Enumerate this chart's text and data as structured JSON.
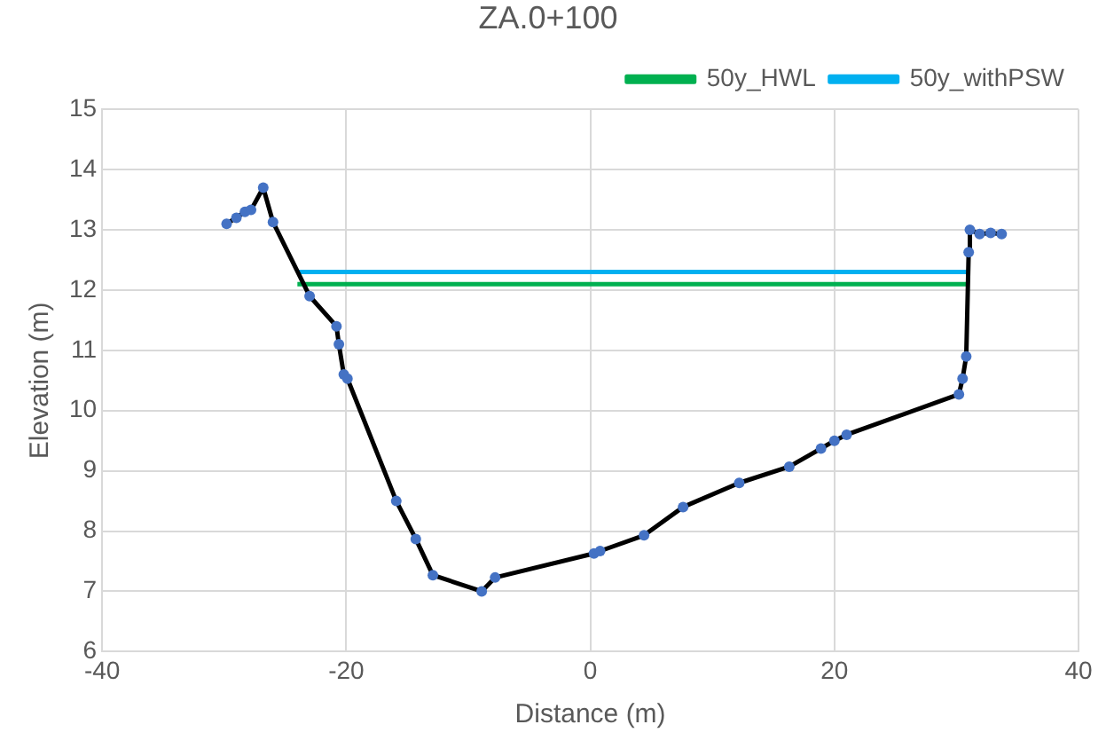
{
  "chart_data": {
    "type": "line",
    "title": "ZA.0+100",
    "xlabel": "Distance (m)",
    "ylabel": "Elevation (m)",
    "xlim": [
      -40,
      40
    ],
    "xticks": [
      -40,
      -20,
      0,
      20,
      40
    ],
    "ylim": [
      6,
      15
    ],
    "yticks": [
      6,
      7,
      8,
      9,
      10,
      11,
      12,
      13,
      14,
      15
    ],
    "grid": true,
    "legend": "top right",
    "line_style": "solid",
    "series": [
      {
        "marker": "circle",
        "color": "#000000",
        "colors": [
          "#4472c4",
          "#4472c4",
          "#4472c4",
          "#4472c4",
          "#4472c4",
          "#4472c4",
          "#4472c4",
          "#4472c4",
          "#4472c4",
          "#4472c4",
          "#4472c4",
          "#4472c4",
          "#4472c4",
          "#4472c4",
          "#4472c4",
          "#4472c4",
          "#4472c4",
          "#4472c4",
          "#4472c4",
          "#4472c4",
          "#4472c4",
          "#4472c4",
          "#4472c4",
          "#4472c4",
          "#4472c4",
          "#4472c4",
          "#4472c4",
          "#4472c4",
          "#4472c4",
          "#4472c4",
          "#4472c4",
          "#4472c4",
          "#4472c4"
        ],
        "x": [
          -29.8,
          -29.0,
          -28.3,
          -27.8,
          -26.8,
          -26.0,
          -23.0,
          -20.8,
          -20.6,
          -20.2,
          -19.9,
          -15.9,
          -14.3,
          -12.9,
          -8.9,
          -7.8,
          0.3,
          0.8,
          4.4,
          7.6,
          12.2,
          16.3,
          18.9,
          20.0,
          21.0,
          30.2,
          30.5,
          30.8,
          31.0,
          31.1,
          31.9,
          32.8,
          33.7
        ],
        "values": [
          13.1,
          13.2,
          13.3,
          13.33,
          13.7,
          13.13,
          11.9,
          11.4,
          11.1,
          10.6,
          10.53,
          8.5,
          7.87,
          7.27,
          7.0,
          7.23,
          7.63,
          7.67,
          7.93,
          8.4,
          8.8,
          9.07,
          9.37,
          9.5,
          9.6,
          10.27,
          10.53,
          10.9,
          12.63,
          13.0,
          12.93,
          12.95,
          12.93
        ]
      },
      {
        "marker": "none",
        "name": "50y_HWL",
        "color": "#00b050",
        "x": [
          -24,
          31
        ],
        "values": [
          12.1,
          12.1
        ]
      },
      {
        "marker": "none",
        "name": "50y_withPSW",
        "color": "#00b0f0",
        "x": [
          -24,
          31
        ],
        "values": [
          12.3,
          12.3
        ]
      }
    ]
  }
}
